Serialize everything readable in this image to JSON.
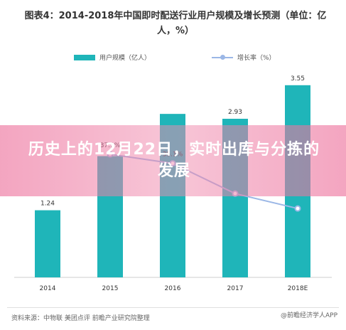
{
  "chart_data": {
    "type": "bar",
    "title": "图表4：2014-2018年中国即时配送行业用户规模及增长预测（单位：亿人，%）",
    "categories": [
      "2014",
      "2015",
      "2016",
      "2017",
      "2018E"
    ],
    "series": [
      {
        "name": "用户规模（亿人）",
        "type": "bar",
        "values": [
          1.24,
          2.24,
          3.02,
          2.93,
          3.55
        ],
        "labels": [
          "1.24",
          "",
          "",
          "2.93",
          "3.55"
        ],
        "color": "#1fb5b9"
      },
      {
        "name": "增长率（%）",
        "type": "line",
        "values": [
          null,
          37.9,
          35.1,
          25.8,
          21.2
        ],
        "labels": [
          "",
          "37.9%",
          "35.1%",
          "",
          ""
        ],
        "color": "#9bb7e6"
      }
    ],
    "ylim_bars": [
      0,
      3.6
    ],
    "ylim_line": [
      0,
      60
    ]
  },
  "banner": {
    "text": "历史上的12月22日，实时出库与分拣的发展"
  },
  "footer": {
    "source": "资料来源：中物联 美团点评 前瞻产业研究院整理",
    "brand": "@前瞻经济学人APP"
  }
}
